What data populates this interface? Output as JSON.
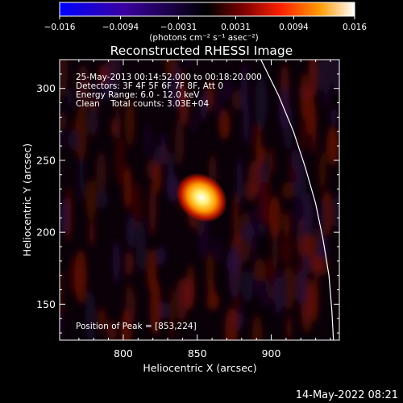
{
  "chart_data": {
    "type": "heatmap",
    "title": "Reconstructed RHESSI Image",
    "xlabel": "Heliocentric X (arcsec)",
    "ylabel": "Heliocentric Y (arcsec)",
    "xlim": [
      757,
      946
    ],
    "ylim": [
      125,
      320
    ],
    "xticks": [
      "800",
      "850",
      "900"
    ],
    "xtick_values": [
      800,
      850,
      900
    ],
    "yticks": [
      "150",
      "200",
      "250",
      "300"
    ],
    "ytick_values": [
      150,
      200,
      250,
      300
    ],
    "colorbar": {
      "range": [
        -0.016,
        0.016
      ],
      "ticks": [
        "−0.016",
        "−0.0094",
        "−0.0031",
        "0.0031",
        "0.0094",
        "0.016"
      ],
      "tick_values": [
        -0.016,
        -0.0094,
        -0.0031,
        0.0031,
        0.0094,
        0.016
      ],
      "label": "(photons cm⁻² s⁻¹ asec⁻²)",
      "colormap": [
        "#0000ff",
        "#3a00a0",
        "#000000",
        "#7a0000",
        "#ff2000",
        "#ff9900",
        "#ffffff"
      ]
    },
    "annotations": [
      "25-May-2013 00:14:52.000 to 00:18:20.000",
      "Detectors: 3F 4F 5F 6F 7F 8F, Att 0",
      "Energy Range: 6.0 - 12.0 keV",
      "Clean    Total counts: 3.03E+04"
    ],
    "peak_label": "Position of Peak = [853,224]",
    "peak": {
      "x": 853,
      "y": 224,
      "value": 0.016
    },
    "limb_curve": [
      [
        893,
        320
      ],
      [
        905,
        295
      ],
      [
        915,
        270
      ],
      [
        923,
        245
      ],
      [
        930,
        220
      ],
      [
        935,
        195
      ],
      [
        939,
        170
      ],
      [
        941,
        145
      ],
      [
        942,
        125
      ]
    ],
    "grid": false,
    "background_color": "#000000"
  },
  "footer": {
    "timestamp": "14-May-2022 08:21"
  }
}
